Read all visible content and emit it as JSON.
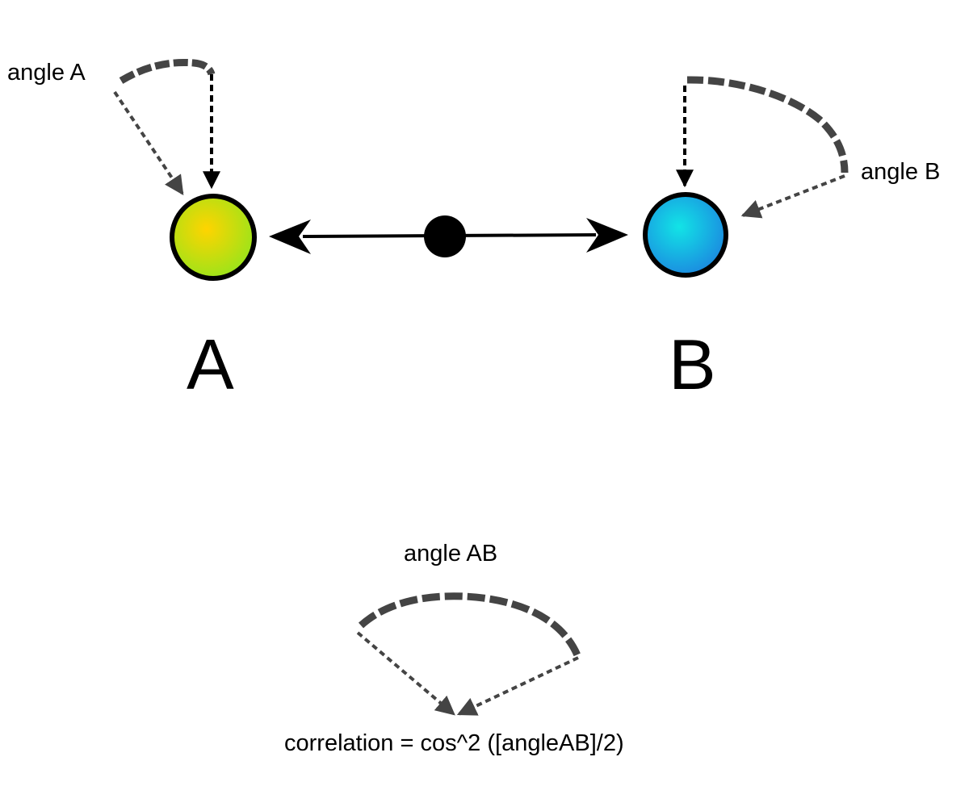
{
  "labels": {
    "angle_a": "angle A",
    "angle_b": "angle B",
    "node_a": "A",
    "node_b": "B",
    "angle_ab": "angle AB",
    "formula": "correlation = cos^2 ([angleAB]/2)"
  },
  "colors": {
    "node_a_fill": "#9be41a",
    "node_a_center": "#ffd400",
    "node_b_fill": "#1b8be0",
    "node_b_center": "#12e4e6",
    "arrow": "#000000",
    "angle_arc": "#444444"
  }
}
